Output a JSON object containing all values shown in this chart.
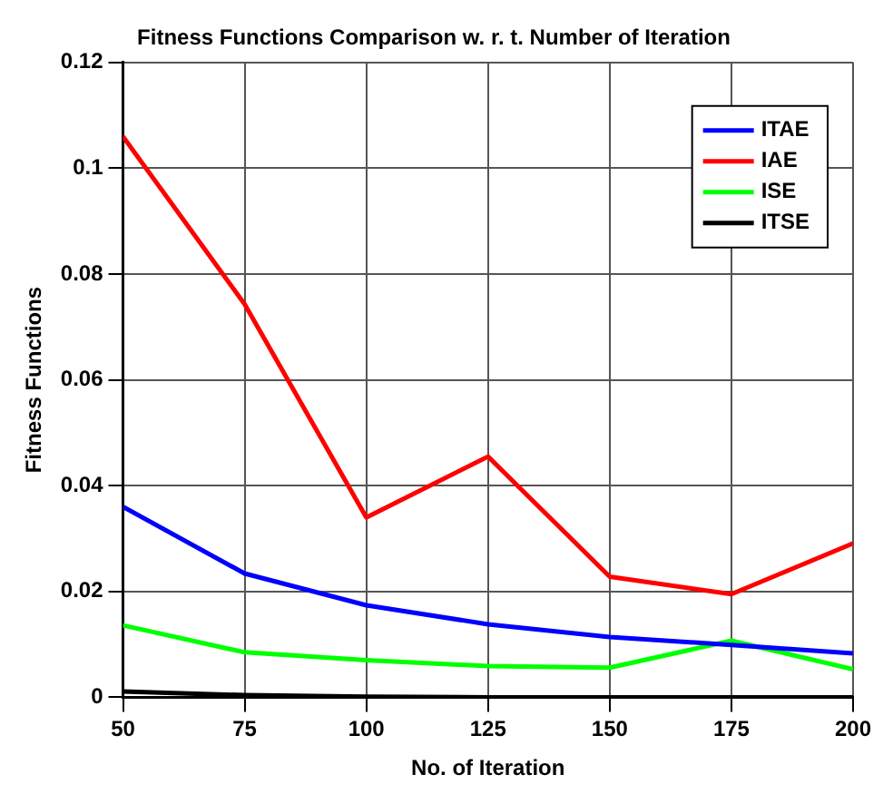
{
  "chart_data": {
    "type": "line",
    "title": "Fitness Functions Comparison w. r. t. Number of Iteration",
    "xlabel": "No. of Iteration",
    "ylabel": "Fitness Functions",
    "x": [
      50,
      75,
      100,
      125,
      150,
      175,
      200
    ],
    "series": [
      {
        "name": "ITAE",
        "color": "#0000ff",
        "values": [
          0.036,
          0.0234,
          0.0174,
          0.0138,
          0.0114,
          0.0099,
          0.0083
        ]
      },
      {
        "name": "IAE",
        "color": "#ff0000",
        "values": [
          0.106,
          0.0743,
          0.034,
          0.0455,
          0.0228,
          0.0195,
          0.0291
        ]
      },
      {
        "name": "ISE",
        "color": "#00ff00",
        "values": [
          0.0136,
          0.0085,
          0.007,
          0.0059,
          0.0056,
          0.0107,
          0.0053
        ]
      },
      {
        "name": "ITSE",
        "color": "#000000",
        "values": [
          0.0011,
          0.0004,
          0.0001,
          0,
          0,
          0,
          0
        ]
      }
    ],
    "xlim": [
      50,
      200
    ],
    "xticks": [
      50,
      75,
      100,
      125,
      150,
      175,
      200
    ],
    "ylim": [
      0,
      0.12
    ],
    "yticks": [
      0,
      0.02,
      0.04,
      0.06,
      0.08,
      0.1,
      0.12
    ],
    "grid": true,
    "legend": "top right",
    "marker": "none",
    "line_style": "solid"
  }
}
